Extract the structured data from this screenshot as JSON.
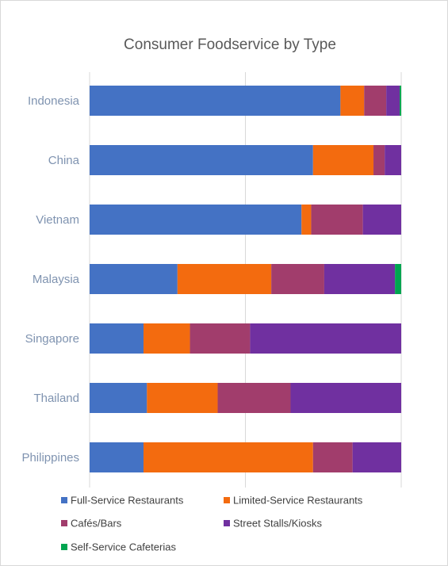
{
  "chart_data": {
    "type": "bar",
    "orientation": "horizontal",
    "stacked": "percent",
    "title": "Consumer Foodservice by Type",
    "categories": [
      "Indonesia",
      "China",
      "Vietnam",
      "Malaysia",
      "Singapore",
      "Thailand",
      "Philippines"
    ],
    "xlim": [
      0,
      100
    ],
    "gridlines": true,
    "legend": "bottom",
    "series": [
      {
        "name": "Full-Service Restaurants",
        "color": "#4472C4",
        "values": [
          80.5,
          71.7,
          68.0,
          28.2,
          17.3,
          18.4,
          17.3
        ]
      },
      {
        "name": "Limited-Service Restaurants",
        "color": "#F36B0F",
        "values": [
          7.6,
          19.4,
          3.1,
          30.1,
          14.9,
          22.7,
          54.4
        ]
      },
      {
        "name": "Cafés/Bars",
        "color": "#A13D6C",
        "values": [
          7.1,
          3.6,
          16.6,
          17.0,
          19.3,
          23.4,
          12.7
        ]
      },
      {
        "name": "Street Stalls/Kiosks",
        "color": "#7030A0",
        "values": [
          4.3,
          5.3,
          12.3,
          22.7,
          48.5,
          35.5,
          15.6
        ]
      },
      {
        "name": "Self-Service Cafeterias",
        "color": "#00A550",
        "values": [
          0.5,
          0.0,
          0.0,
          2.0,
          0.0,
          0.0,
          0.0
        ]
      }
    ]
  }
}
